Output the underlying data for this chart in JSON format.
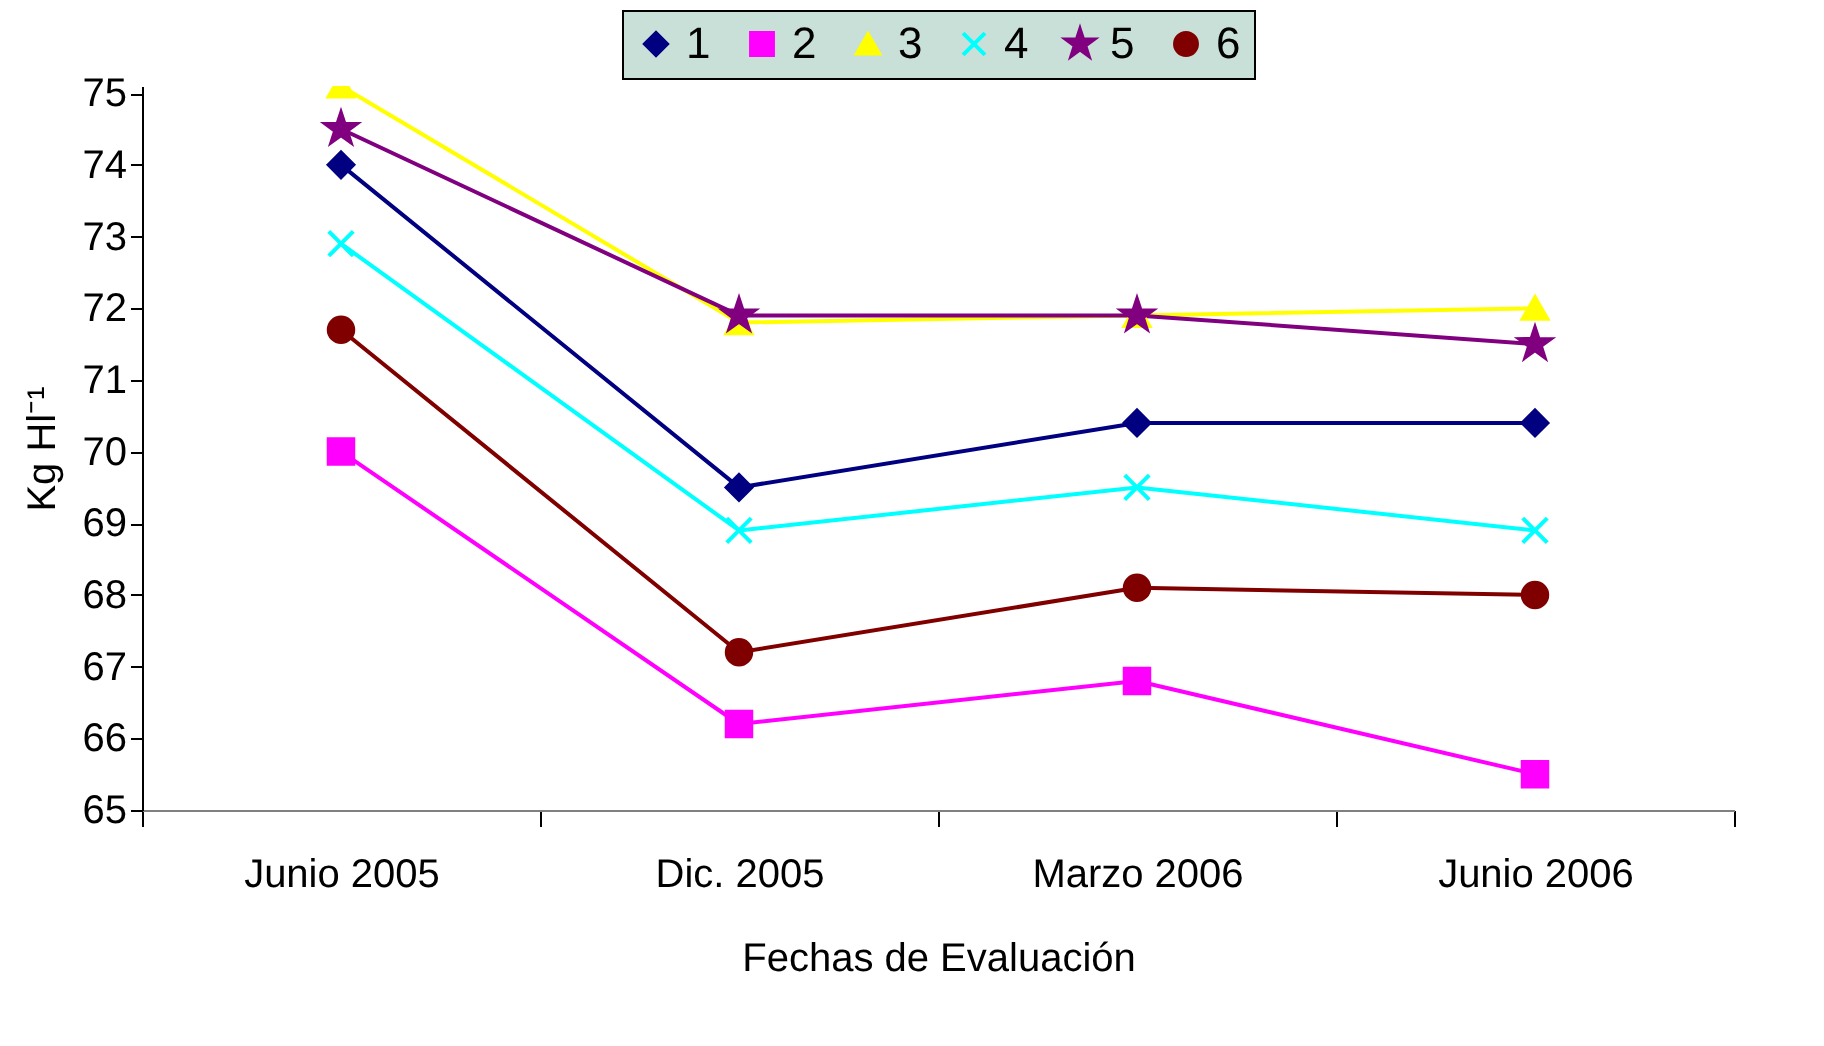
{
  "chart_data": {
    "type": "line",
    "xlabel": "Fechas de Evaluación",
    "ylabel": "Kg Hl⁻¹",
    "categories": [
      "Junio 2005",
      "Dic. 2005",
      "Marzo 2006",
      "Junio 2006"
    ],
    "series": [
      {
        "name": "1",
        "color": "#000080",
        "marker": "diamond",
        "values": [
          74.0,
          69.5,
          70.4,
          70.4
        ]
      },
      {
        "name": "2",
        "color": "#ff00ff",
        "marker": "square",
        "values": [
          70.0,
          66.2,
          66.8,
          65.5
        ]
      },
      {
        "name": "3",
        "color": "#ffff00",
        "marker": "triangle",
        "values": [
          75.1,
          71.8,
          71.9,
          72.0
        ]
      },
      {
        "name": "4",
        "color": "#00ffff",
        "marker": "cross",
        "values": [
          72.9,
          68.9,
          69.5,
          68.9
        ]
      },
      {
        "name": "5",
        "color": "#800080",
        "marker": "star",
        "values": [
          74.5,
          71.9,
          71.9,
          71.5
        ]
      },
      {
        "name": "6",
        "color": "#800000",
        "marker": "circle",
        "values": [
          71.7,
          67.2,
          68.1,
          68.0
        ]
      }
    ],
    "ylim": [
      65,
      75.1
    ],
    "yticks": [
      65,
      66,
      67,
      68,
      69,
      70,
      71,
      72,
      73,
      74,
      75
    ],
    "legend": "top",
    "grid": false,
    "line_style": "solid"
  }
}
